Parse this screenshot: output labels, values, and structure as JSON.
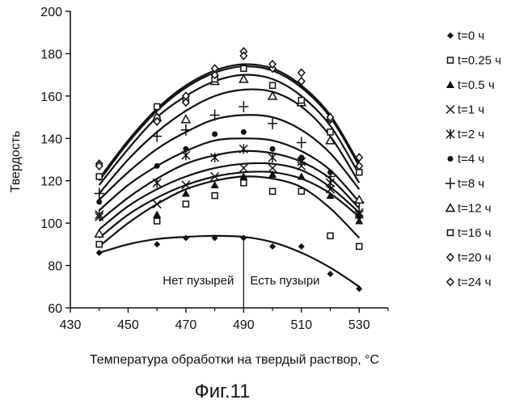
{
  "chart_data": {
    "type": "scatter",
    "ylabel": "Твердость",
    "xlabel": "Температура обработки на твердый раствор, °С",
    "caption": "Фиг.11",
    "xlim": [
      430,
      540
    ],
    "ylim": [
      60,
      200
    ],
    "x_ticks": [
      "430",
      "450",
      "470",
      "490",
      "510",
      "530"
    ],
    "y_ticks": [
      "60",
      "80",
      "100",
      "120",
      "140",
      "160",
      "180",
      "200"
    ],
    "grid": false,
    "legend_position": "right",
    "annotations": {
      "divider_x": 490,
      "left_region": "Нет пузырей",
      "right_region": "Есть пузыри"
    },
    "series": [
      {
        "name": "t=0 ч",
        "marker": "diamond-filled",
        "points": [
          [
            440,
            86
          ],
          [
            460,
            90
          ],
          [
            470,
            93
          ],
          [
            480,
            93
          ],
          [
            490,
            93
          ],
          [
            500,
            89
          ],
          [
            510,
            89
          ],
          [
            520,
            76
          ],
          [
            530,
            69
          ]
        ],
        "curve": [
          [
            440,
            86
          ],
          [
            450,
            90
          ],
          [
            460,
            92.5
          ],
          [
            470,
            93.5
          ],
          [
            480,
            94
          ],
          [
            490,
            93.5
          ],
          [
            500,
            91
          ],
          [
            510,
            86
          ],
          [
            520,
            79
          ],
          [
            530,
            70
          ]
        ]
      },
      {
        "name": "t=0.25 ч",
        "marker": "square-open",
        "points": [
          [
            440,
            90
          ],
          [
            460,
            101
          ],
          [
            470,
            109
          ],
          [
            480,
            113
          ],
          [
            490,
            119
          ],
          [
            500,
            115
          ],
          [
            510,
            115
          ],
          [
            520,
            94
          ],
          [
            530,
            89
          ]
        ],
        "curve": [
          [
            440,
            89
          ],
          [
            450,
            100
          ],
          [
            460,
            109
          ],
          [
            470,
            116
          ],
          [
            480,
            120
          ],
          [
            490,
            122
          ],
          [
            500,
            121
          ],
          [
            510,
            117
          ],
          [
            520,
            107
          ],
          [
            530,
            93
          ]
        ]
      },
      {
        "name": "t=0.5 ч",
        "marker": "triangle-filled",
        "points": [
          [
            440,
            95
          ],
          [
            460,
            104
          ],
          [
            470,
            114
          ],
          [
            480,
            118
          ],
          [
            490,
            122
          ],
          [
            500,
            123
          ],
          [
            510,
            122
          ],
          [
            520,
            113
          ],
          [
            530,
            101
          ]
        ],
        "curve": [
          [
            440,
            93
          ],
          [
            450,
            104
          ],
          [
            460,
            112
          ],
          [
            470,
            118
          ],
          [
            480,
            122
          ],
          [
            490,
            124
          ],
          [
            500,
            124
          ],
          [
            510,
            121
          ],
          [
            520,
            114
          ],
          [
            530,
            103
          ]
        ]
      },
      {
        "name": "t=1 ч",
        "marker": "x",
        "points": [
          [
            440,
            103
          ],
          [
            460,
            109
          ],
          [
            470,
            118
          ],
          [
            480,
            122
          ],
          [
            490,
            126
          ],
          [
            500,
            126
          ],
          [
            510,
            127
          ],
          [
            520,
            116
          ],
          [
            530,
            104
          ]
        ],
        "curve": [
          [
            440,
            97
          ],
          [
            450,
            108
          ],
          [
            460,
            116
          ],
          [
            470,
            122
          ],
          [
            480,
            126
          ],
          [
            490,
            128
          ],
          [
            500,
            128
          ],
          [
            510,
            125
          ],
          [
            520,
            117
          ],
          [
            530,
            105
          ]
        ]
      },
      {
        "name": "t=2 ч",
        "marker": "asterisk",
        "points": [
          [
            440,
            104
          ],
          [
            460,
            119
          ],
          [
            470,
            132
          ],
          [
            480,
            131
          ],
          [
            490,
            135
          ],
          [
            500,
            131
          ],
          [
            510,
            129
          ],
          [
            520,
            119
          ],
          [
            530,
            105
          ]
        ],
        "curve": [
          [
            440,
            101
          ],
          [
            450,
            112
          ],
          [
            460,
            121
          ],
          [
            470,
            128
          ],
          [
            480,
            132
          ],
          [
            490,
            134
          ],
          [
            500,
            133
          ],
          [
            510,
            129
          ],
          [
            520,
            121
          ],
          [
            530,
            107
          ]
        ]
      },
      {
        "name": "t=4 ч",
        "marker": "circle-filled",
        "points": [
          [
            440,
            110
          ],
          [
            460,
            127
          ],
          [
            470,
            135
          ],
          [
            480,
            142
          ],
          [
            490,
            143
          ],
          [
            500,
            135
          ],
          [
            510,
            131
          ],
          [
            520,
            124
          ],
          [
            530,
            103
          ]
        ],
        "curve": [
          [
            440,
            106
          ],
          [
            450,
            118
          ],
          [
            460,
            127
          ],
          [
            470,
            134
          ],
          [
            480,
            139
          ],
          [
            490,
            140
          ],
          [
            500,
            139
          ],
          [
            510,
            134
          ],
          [
            520,
            125
          ],
          [
            530,
            110
          ]
        ]
      },
      {
        "name": "t=8 ч",
        "marker": "plus",
        "points": [
          [
            440,
            114
          ],
          [
            460,
            141
          ],
          [
            470,
            144
          ],
          [
            480,
            151
          ],
          [
            490,
            155
          ],
          [
            500,
            147
          ],
          [
            510,
            138
          ],
          [
            520,
            122
          ],
          [
            530,
            110
          ]
        ],
        "curve": [
          [
            440,
            111
          ],
          [
            450,
            124
          ],
          [
            460,
            135
          ],
          [
            470,
            143
          ],
          [
            480,
            149
          ],
          [
            490,
            151
          ],
          [
            500,
            150
          ],
          [
            510,
            144
          ],
          [
            520,
            133
          ],
          [
            530,
            116
          ]
        ]
      },
      {
        "name": "t=12 ч",
        "marker": "triangle-open",
        "points": [
          [
            440,
            95
          ],
          [
            460,
            150
          ],
          [
            470,
            149
          ],
          [
            480,
            167
          ],
          [
            490,
            168
          ],
          [
            500,
            160
          ],
          [
            510,
            157
          ],
          [
            520,
            139
          ],
          [
            530,
            111
          ]
        ],
        "curve": [
          [
            440,
            114
          ],
          [
            450,
            130
          ],
          [
            460,
            143
          ],
          [
            470,
            153
          ],
          [
            480,
            160
          ],
          [
            490,
            163
          ],
          [
            500,
            162
          ],
          [
            510,
            155
          ],
          [
            520,
            141
          ],
          [
            530,
            119
          ]
        ]
      },
      {
        "name": "t=16 ч",
        "marker": "square-open",
        "points": [
          [
            440,
            122
          ],
          [
            460,
            155
          ],
          [
            470,
            159
          ],
          [
            480,
            168
          ],
          [
            490,
            173
          ],
          [
            500,
            165
          ],
          [
            510,
            158
          ],
          [
            520,
            143
          ],
          [
            530,
            124
          ]
        ],
        "curve": [
          [
            440,
            118
          ],
          [
            450,
            135
          ],
          [
            460,
            150
          ],
          [
            470,
            160
          ],
          [
            480,
            167
          ],
          [
            490,
            170
          ],
          [
            500,
            168
          ],
          [
            510,
            160
          ],
          [
            520,
            146
          ],
          [
            530,
            123
          ]
        ]
      },
      {
        "name": "t=20 ч",
        "marker": "diamond-open",
        "points": [
          [
            440,
            128
          ],
          [
            460,
            150
          ],
          [
            470,
            160
          ],
          [
            480,
            170
          ],
          [
            490,
            181
          ],
          [
            500,
            173
          ],
          [
            510,
            171
          ],
          [
            520,
            149
          ],
          [
            530,
            131
          ]
        ],
        "curve": [
          [
            440,
            120
          ],
          [
            450,
            138
          ],
          [
            460,
            153
          ],
          [
            470,
            164
          ],
          [
            480,
            171
          ],
          [
            490,
            174
          ],
          [
            500,
            172
          ],
          [
            510,
            164
          ],
          [
            520,
            150
          ],
          [
            530,
            127
          ]
        ]
      },
      {
        "name": "t=24 ч",
        "marker": "diamond-open",
        "points": [
          [
            440,
            127
          ],
          [
            460,
            148
          ],
          [
            470,
            157
          ],
          [
            480,
            173
          ],
          [
            490,
            179
          ],
          [
            500,
            175
          ],
          [
            510,
            167
          ],
          [
            520,
            150
          ],
          [
            530,
            127
          ]
        ],
        "curve": [
          [
            440,
            121
          ],
          [
            450,
            139
          ],
          [
            460,
            154
          ],
          [
            470,
            165
          ],
          [
            480,
            172
          ],
          [
            490,
            175
          ],
          [
            500,
            173
          ],
          [
            510,
            165
          ],
          [
            520,
            151
          ],
          [
            530,
            128
          ]
        ]
      }
    ]
  }
}
